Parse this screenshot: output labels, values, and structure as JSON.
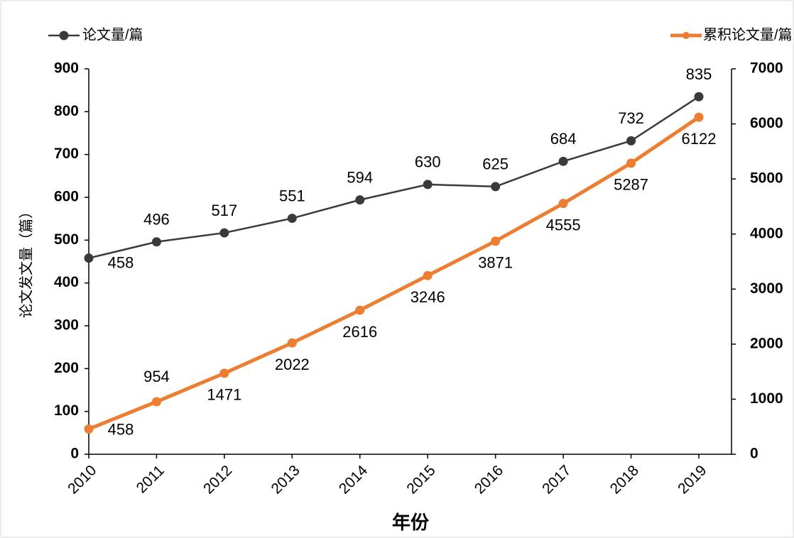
{
  "chart_data": {
    "type": "line",
    "y_label": "论文发文量（篇）",
    "x_label": "年份",
    "categories": [
      "2010",
      "2011",
      "2012",
      "2013",
      "2014",
      "2015",
      "2016",
      "2017",
      "2018",
      "2019"
    ],
    "series": [
      {
        "name": "论文量/篇",
        "color": "#3a3a3a",
        "values": [
          458,
          496,
          517,
          551,
          594,
          630,
          625,
          684,
          732,
          835
        ]
      },
      {
        "name": "累积论文量/篇",
        "color": "#ed7d31",
        "axis": "y2",
        "values": [
          458,
          954,
          1471,
          2022,
          2616,
          3246,
          3871,
          4555,
          5287,
          6122
        ]
      }
    ],
    "ylim": [
      0,
      900
    ],
    "yticks": [
      0,
      100,
      200,
      300,
      400,
      500,
      600,
      700,
      800,
      900
    ],
    "y2lim": [
      0,
      7000
    ],
    "y2ticks": [
      0,
      1000,
      2000,
      3000,
      4000,
      5000,
      6000,
      7000
    ],
    "grid": false
  }
}
